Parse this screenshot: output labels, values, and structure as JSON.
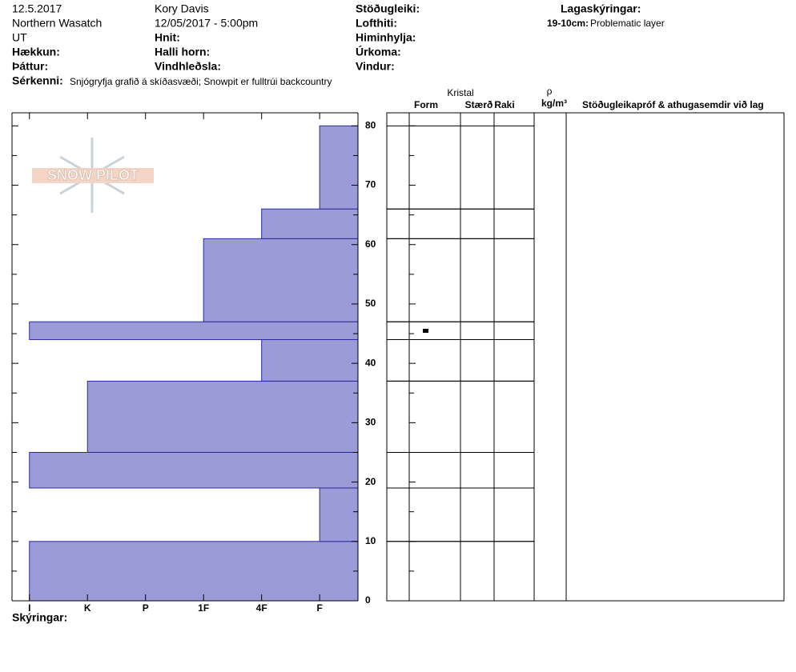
{
  "header": {
    "row1": [
      "12.5.2017",
      "Kory Davis",
      "Stöðugleiki:",
      "Lagaskýringar:"
    ],
    "row2": [
      "Northern Wasatch",
      "12/05/2017 - 5:00pm",
      "Lofthiti:"
    ],
    "row3": [
      "UT",
      "Hnit:",
      "Himinhylja:"
    ],
    "row4": [
      "Hækkun:",
      "Halli horn:",
      "Úrkoma:"
    ],
    "row5": [
      "Þáttur:",
      "Vindhleðsla:",
      "Vindur:"
    ],
    "layer_note": {
      "range": "19-10cm:",
      "text": "Problematic layer"
    },
    "features": {
      "label": "Sérkenni:",
      "text": "Snjógryfja grafið á skíðasvæði;  Snowpit er fulltrúi backcountry"
    }
  },
  "logo": "SNOW PILOT",
  "chart_data": {
    "type": "bar",
    "orientation": "horizontal",
    "color": "#9b9bd7",
    "edge_color": "#2a2aa0",
    "layers": [
      {
        "bottom": 0,
        "top": 10,
        "hardness": 6
      },
      {
        "bottom": 10,
        "top": 19,
        "hardness": 1
      },
      {
        "bottom": 19,
        "top": 25,
        "hardness": 6
      },
      {
        "bottom": 25,
        "top": 37,
        "hardness": 5
      },
      {
        "bottom": 37,
        "top": 44,
        "hardness": 2
      },
      {
        "bottom": 44,
        "top": 47,
        "hardness": 6
      },
      {
        "bottom": 47,
        "top": 61,
        "hardness": 3
      },
      {
        "bottom": 61,
        "top": 66,
        "hardness": 2
      },
      {
        "bottom": 66,
        "top": 80,
        "hardness": 1
      }
    ],
    "ylim": [
      0,
      82.2
    ],
    "yticks": [
      0,
      10,
      20,
      30,
      40,
      50,
      60,
      70,
      80
    ],
    "xlim": [
      6.3,
      0.34
    ],
    "xticks": [
      {
        "value": 6,
        "label": "I"
      },
      {
        "value": 5,
        "label": "K"
      },
      {
        "value": 4,
        "label": "P"
      },
      {
        "value": 3,
        "label": "1F"
      },
      {
        "value": 2,
        "label": "4F"
      },
      {
        "value": 1,
        "label": "F"
      }
    ]
  },
  "table": {
    "crystal": "Kristal",
    "form": "Form",
    "size": "Stærð",
    "moisture": "Raki",
    "rho": "ρ",
    "density_unit": "kg/m³",
    "comments": "Stöðugleikapróf & athugasemdir við lag"
  },
  "footer": "Skýringar:"
}
